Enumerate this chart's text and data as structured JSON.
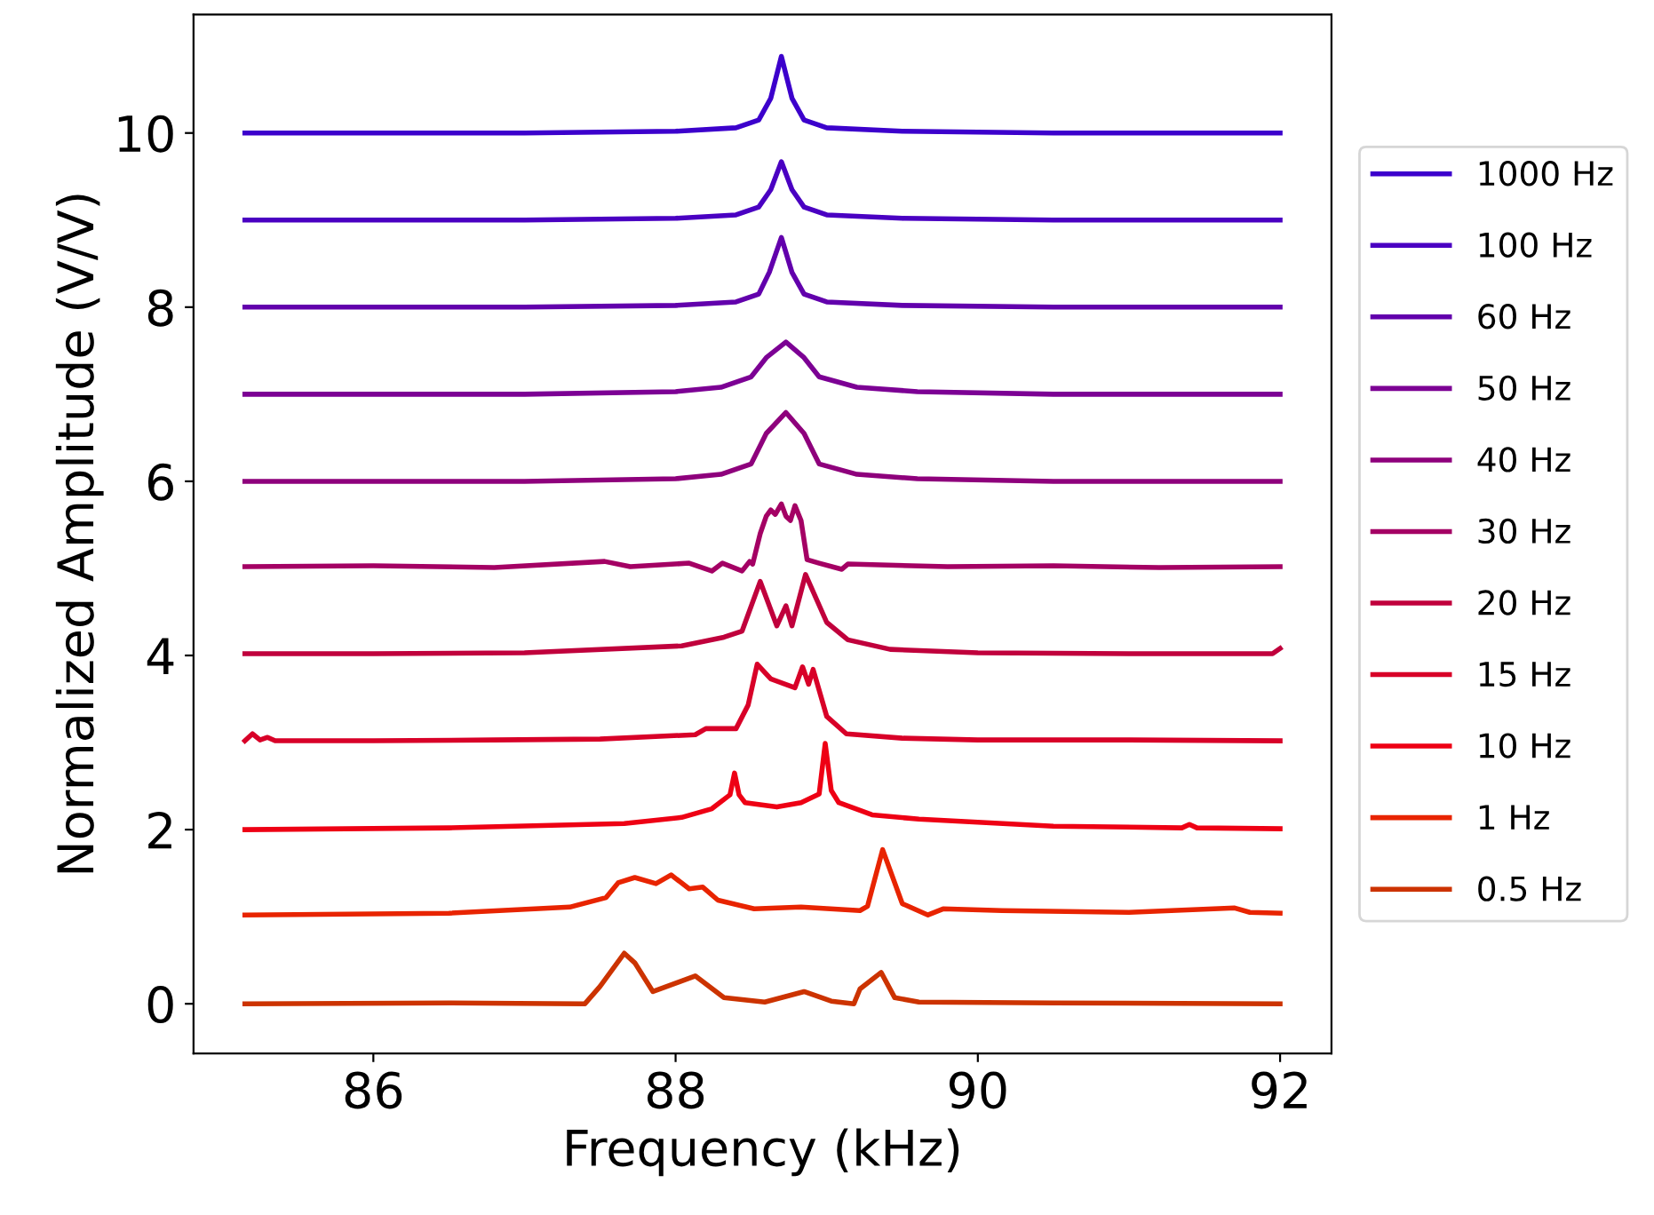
{
  "chart_data": {
    "type": "line",
    "xlabel": "Frequency (kHz)",
    "ylabel": "Normalized Amplitude (V/V)",
    "xlim": [
      84.81,
      92.34
    ],
    "ylim": [
      -0.57,
      11.36
    ],
    "xticks": [
      86,
      88,
      90,
      92
    ],
    "yticks": [
      0,
      2,
      4,
      6,
      8,
      10
    ],
    "grid": false,
    "legend": "right",
    "marker": "none",
    "line_style": "solid",
    "series": [
      {
        "name": "1000 Hz",
        "color": "#3c00cc",
        "x": [
          85.15,
          87.0,
          88.0,
          88.4,
          88.55,
          88.63,
          88.7,
          88.77,
          88.85,
          89.0,
          89.5,
          90.5,
          92.0
        ],
        "values": [
          10.0,
          10.0,
          10.02,
          10.06,
          10.15,
          10.4,
          10.88,
          10.4,
          10.15,
          10.06,
          10.02,
          10.0,
          10.0
        ]
      },
      {
        "name": "100 Hz",
        "color": "#4a00c2",
        "x": [
          85.15,
          87.0,
          88.0,
          88.4,
          88.55,
          88.63,
          88.7,
          88.77,
          88.85,
          89.0,
          89.5,
          90.5,
          92.0
        ],
        "values": [
          9.0,
          9.0,
          9.02,
          9.06,
          9.15,
          9.35,
          9.67,
          9.35,
          9.15,
          9.06,
          9.02,
          9.0,
          9.0
        ]
      },
      {
        "name": "60 Hz",
        "color": "#6200ac",
        "x": [
          85.15,
          87.0,
          88.0,
          88.4,
          88.55,
          88.62,
          88.7,
          88.77,
          88.85,
          89.0,
          89.5,
          90.5,
          92.0
        ],
        "values": [
          8.0,
          8.0,
          8.02,
          8.06,
          8.15,
          8.4,
          8.8,
          8.4,
          8.15,
          8.06,
          8.02,
          8.0,
          8.0
        ]
      },
      {
        "name": "50 Hz",
        "color": "#7c0094",
        "x": [
          85.15,
          87.0,
          88.0,
          88.3,
          88.5,
          88.6,
          88.73,
          88.85,
          88.95,
          89.2,
          89.6,
          90.5,
          92.0
        ],
        "values": [
          7.0,
          7.0,
          7.03,
          7.08,
          7.2,
          7.42,
          7.6,
          7.42,
          7.2,
          7.08,
          7.03,
          7.0,
          7.0
        ]
      },
      {
        "name": "40 Hz",
        "color": "#8e007c",
        "x": [
          85.15,
          87.0,
          88.0,
          88.3,
          88.5,
          88.6,
          88.73,
          88.85,
          88.95,
          89.2,
          89.6,
          90.5,
          92.0
        ],
        "values": [
          6.0,
          6.0,
          6.03,
          6.08,
          6.2,
          6.55,
          6.79,
          6.55,
          6.2,
          6.08,
          6.03,
          6.0,
          6.0
        ]
      },
      {
        "name": "30 Hz",
        "color": "#a40064",
        "x": [
          85.15,
          86.0,
          86.8,
          87.53,
          87.7,
          88.09,
          88.24,
          88.31,
          88.44,
          88.49,
          88.51,
          88.56,
          88.6,
          88.63,
          88.66,
          88.7,
          88.73,
          88.76,
          88.79,
          88.83,
          88.87,
          88.95,
          89.1,
          89.14,
          89.8,
          90.5,
          91.2,
          92.0
        ],
        "values": [
          5.02,
          5.03,
          5.01,
          5.08,
          5.02,
          5.06,
          4.97,
          5.06,
          4.97,
          5.08,
          5.05,
          5.4,
          5.6,
          5.67,
          5.62,
          5.74,
          5.6,
          5.55,
          5.72,
          5.55,
          5.1,
          5.06,
          4.99,
          5.05,
          5.02,
          5.03,
          5.01,
          5.02
        ]
      },
      {
        "name": "20 Hz",
        "color": "#c0003c",
        "x": [
          85.15,
          86.0,
          87.0,
          88.04,
          88.32,
          88.44,
          88.56,
          88.67,
          88.73,
          88.77,
          88.86,
          89.0,
          89.14,
          89.42,
          90.0,
          91.0,
          91.95,
          92.0
        ],
        "values": [
          4.02,
          4.02,
          4.03,
          4.11,
          4.21,
          4.28,
          4.85,
          4.34,
          4.57,
          4.34,
          4.93,
          4.38,
          4.18,
          4.07,
          4.03,
          4.02,
          4.02,
          4.08
        ]
      },
      {
        "name": "15 Hz",
        "color": "#d80028",
        "x": [
          85.15,
          85.2,
          85.25,
          85.3,
          85.35,
          86.0,
          86.8,
          87.5,
          88.13,
          88.2,
          88.4,
          88.48,
          88.54,
          88.63,
          88.79,
          88.84,
          88.88,
          88.91,
          89.0,
          89.13,
          89.5,
          90.0,
          91.0,
          92.0
        ],
        "values": [
          3.02,
          3.1,
          3.03,
          3.06,
          3.02,
          3.02,
          3.03,
          3.04,
          3.09,
          3.16,
          3.16,
          3.43,
          3.9,
          3.73,
          3.63,
          3.87,
          3.67,
          3.84,
          3.3,
          3.1,
          3.05,
          3.03,
          3.03,
          3.02
        ]
      },
      {
        "name": "10 Hz",
        "color": "#ee0014",
        "x": [
          85.15,
          86.5,
          87.66,
          88.04,
          88.24,
          88.36,
          88.39,
          88.42,
          88.46,
          88.67,
          88.83,
          88.95,
          88.99,
          89.03,
          89.08,
          89.3,
          89.61,
          90.5,
          91.35,
          91.4,
          91.45,
          92.0
        ],
        "values": [
          2.0,
          2.02,
          2.07,
          2.14,
          2.24,
          2.4,
          2.65,
          2.4,
          2.31,
          2.26,
          2.31,
          2.41,
          2.99,
          2.45,
          2.31,
          2.17,
          2.12,
          2.04,
          2.02,
          2.06,
          2.02,
          2.01
        ]
      },
      {
        "name": "1 Hz",
        "color": "#e82400",
        "x": [
          85.15,
          86.5,
          87.3,
          87.54,
          87.62,
          87.73,
          87.87,
          87.97,
          88.09,
          88.18,
          88.28,
          88.52,
          88.83,
          89.22,
          89.27,
          89.37,
          89.5,
          89.67,
          89.77,
          90.16,
          91.0,
          91.7,
          91.8,
          92.0
        ],
        "values": [
          1.02,
          1.04,
          1.11,
          1.22,
          1.39,
          1.45,
          1.38,
          1.48,
          1.32,
          1.34,
          1.19,
          1.09,
          1.11,
          1.07,
          1.12,
          1.77,
          1.15,
          1.02,
          1.09,
          1.07,
          1.05,
          1.1,
          1.05,
          1.04
        ]
      },
      {
        "name": "0.5 Hz",
        "color": "#cc3300",
        "x": [
          85.15,
          86.5,
          87.4,
          87.5,
          87.66,
          87.73,
          87.85,
          88.13,
          88.32,
          88.59,
          88.85,
          89.03,
          89.18,
          89.22,
          89.36,
          89.45,
          89.61,
          90.5,
          92.0
        ],
        "values": [
          0.0,
          0.01,
          0.0,
          0.2,
          0.58,
          0.47,
          0.14,
          0.32,
          0.07,
          0.02,
          0.14,
          0.03,
          0.0,
          0.17,
          0.36,
          0.07,
          0.02,
          0.01,
          0.0
        ]
      }
    ]
  }
}
